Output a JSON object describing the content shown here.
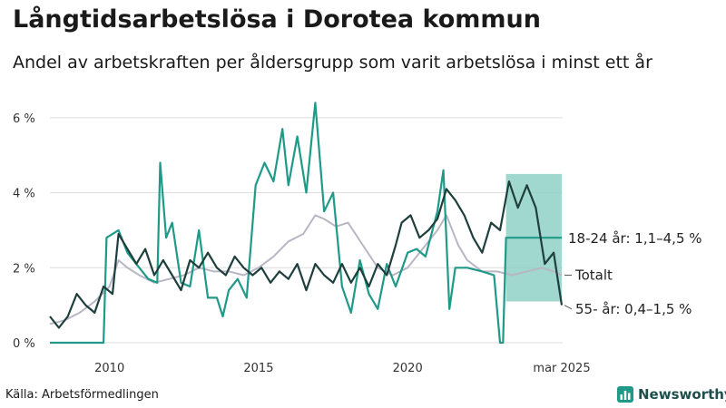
{
  "header": {
    "title": "Långtidsarbetslösa i Dorotea kommun",
    "subtitle": "Andel av arbetskraften per åldersgrupp som varit arbetslösa i minst ett år"
  },
  "footer": {
    "source": "Källa: Arbetsförmedlingen",
    "brand": "Newsworthy"
  },
  "colors": {
    "youth": "#1f9a88",
    "senior": "#1f3f3d",
    "total": "#b9b6c4",
    "band": "#8fd0c6",
    "grid": "#dddddd"
  },
  "chart_data": {
    "type": "line",
    "xlabel": "",
    "ylabel": "",
    "xlim": [
      2008.0,
      2025.2
    ],
    "ylim": [
      0,
      6.6
    ],
    "x_ticks": [
      {
        "value": 2010,
        "label": "2010"
      },
      {
        "value": 2015,
        "label": "2015"
      },
      {
        "value": 2020,
        "label": "2020"
      },
      {
        "value": 2025.17,
        "label": "mar 2025"
      }
    ],
    "y_ticks": [
      {
        "value": 0,
        "label": "0 %"
      },
      {
        "value": 2,
        "label": "2 %"
      },
      {
        "value": 4,
        "label": "4 %"
      },
      {
        "value": 6,
        "label": "6 %"
      }
    ],
    "grid": true,
    "series": [
      {
        "name": "Totalt",
        "key": "total",
        "label": "Totalt",
        "points": [
          [
            2008.0,
            0.5
          ],
          [
            2008.5,
            0.6
          ],
          [
            2009.0,
            0.8
          ],
          [
            2009.5,
            1.1
          ],
          [
            2010.0,
            1.5
          ],
          [
            2010.3,
            2.2
          ],
          [
            2010.6,
            2.0
          ],
          [
            2011.0,
            1.8
          ],
          [
            2011.5,
            1.6
          ],
          [
            2012.0,
            1.7
          ],
          [
            2012.5,
            1.8
          ],
          [
            2013.0,
            2.0
          ],
          [
            2013.5,
            1.9
          ],
          [
            2014.0,
            1.9
          ],
          [
            2014.5,
            1.8
          ],
          [
            2015.0,
            2.0
          ],
          [
            2015.5,
            2.3
          ],
          [
            2016.0,
            2.7
          ],
          [
            2016.5,
            2.9
          ],
          [
            2016.9,
            3.4
          ],
          [
            2017.2,
            3.3
          ],
          [
            2017.6,
            3.1
          ],
          [
            2018.0,
            3.2
          ],
          [
            2018.5,
            2.6
          ],
          [
            2019.0,
            2.0
          ],
          [
            2019.5,
            1.8
          ],
          [
            2020.0,
            2.0
          ],
          [
            2020.5,
            2.5
          ],
          [
            2021.0,
            3.0
          ],
          [
            2021.3,
            3.4
          ],
          [
            2021.7,
            2.6
          ],
          [
            2022.0,
            2.2
          ],
          [
            2022.5,
            1.9
          ],
          [
            2023.0,
            1.9
          ],
          [
            2023.5,
            1.8
          ],
          [
            2024.0,
            1.9
          ],
          [
            2024.5,
            2.0
          ],
          [
            2024.9,
            1.9
          ],
          [
            2025.17,
            1.8
          ]
        ]
      },
      {
        "name": "18-24 år",
        "key": "youth",
        "label": "18-24 år: 1,1–4,5 %",
        "points": [
          [
            2008.0,
            0.0
          ],
          [
            2009.8,
            0.0
          ],
          [
            2009.9,
            2.8
          ],
          [
            2010.3,
            3.0
          ],
          [
            2010.6,
            2.4
          ],
          [
            2011.0,
            2.0
          ],
          [
            2011.3,
            1.7
          ],
          [
            2011.6,
            1.6
          ],
          [
            2011.7,
            4.8
          ],
          [
            2011.9,
            2.8
          ],
          [
            2012.1,
            3.2
          ],
          [
            2012.4,
            1.6
          ],
          [
            2012.7,
            1.5
          ],
          [
            2013.0,
            3.0
          ],
          [
            2013.3,
            1.2
          ],
          [
            2013.6,
            1.2
          ],
          [
            2013.8,
            0.7
          ],
          [
            2014.0,
            1.4
          ],
          [
            2014.3,
            1.7
          ],
          [
            2014.6,
            1.2
          ],
          [
            2014.9,
            4.2
          ],
          [
            2015.2,
            4.8
          ],
          [
            2015.5,
            4.3
          ],
          [
            2015.8,
            5.7
          ],
          [
            2016.0,
            4.2
          ],
          [
            2016.3,
            5.5
          ],
          [
            2016.6,
            4.0
          ],
          [
            2016.9,
            6.4
          ],
          [
            2017.2,
            3.5
          ],
          [
            2017.5,
            4.0
          ],
          [
            2017.8,
            1.5
          ],
          [
            2018.1,
            0.8
          ],
          [
            2018.4,
            2.2
          ],
          [
            2018.7,
            1.3
          ],
          [
            2019.0,
            0.9
          ],
          [
            2019.3,
            2.1
          ],
          [
            2019.6,
            1.5
          ],
          [
            2020.0,
            2.4
          ],
          [
            2020.3,
            2.5
          ],
          [
            2020.6,
            2.3
          ],
          [
            2021.0,
            3.5
          ],
          [
            2021.2,
            4.6
          ],
          [
            2021.4,
            0.9
          ],
          [
            2021.6,
            2.0
          ],
          [
            2022.0,
            2.0
          ],
          [
            2022.5,
            1.9
          ],
          [
            2022.9,
            1.8
          ],
          [
            2023.1,
            0.0
          ],
          [
            2023.2,
            0.0
          ],
          [
            2023.3,
            2.8
          ],
          [
            2024.0,
            2.8
          ],
          [
            2024.5,
            2.8
          ],
          [
            2025.17,
            2.8
          ]
        ]
      },
      {
        "name": "55- år",
        "key": "senior",
        "label": "55- år: 0,4–1,5 %",
        "points": [
          [
            2008.0,
            0.7
          ],
          [
            2008.3,
            0.4
          ],
          [
            2008.6,
            0.7
          ],
          [
            2008.9,
            1.3
          ],
          [
            2009.2,
            1.0
          ],
          [
            2009.5,
            0.8
          ],
          [
            2009.8,
            1.5
          ],
          [
            2010.1,
            1.3
          ],
          [
            2010.3,
            2.9
          ],
          [
            2010.6,
            2.5
          ],
          [
            2010.9,
            2.1
          ],
          [
            2011.2,
            2.5
          ],
          [
            2011.5,
            1.8
          ],
          [
            2011.8,
            2.2
          ],
          [
            2012.1,
            1.8
          ],
          [
            2012.4,
            1.4
          ],
          [
            2012.7,
            2.2
          ],
          [
            2013.0,
            2.0
          ],
          [
            2013.3,
            2.4
          ],
          [
            2013.6,
            2.0
          ],
          [
            2013.9,
            1.8
          ],
          [
            2014.2,
            2.3
          ],
          [
            2014.5,
            2.0
          ],
          [
            2014.8,
            1.8
          ],
          [
            2015.1,
            2.0
          ],
          [
            2015.4,
            1.6
          ],
          [
            2015.7,
            1.9
          ],
          [
            2016.0,
            1.7
          ],
          [
            2016.3,
            2.1
          ],
          [
            2016.6,
            1.4
          ],
          [
            2016.9,
            2.1
          ],
          [
            2017.2,
            1.8
          ],
          [
            2017.5,
            1.6
          ],
          [
            2017.8,
            2.1
          ],
          [
            2018.1,
            1.6
          ],
          [
            2018.4,
            2.0
          ],
          [
            2018.7,
            1.5
          ],
          [
            2019.0,
            2.1
          ],
          [
            2019.3,
            1.8
          ],
          [
            2019.6,
            2.6
          ],
          [
            2019.8,
            3.2
          ],
          [
            2020.1,
            3.4
          ],
          [
            2020.4,
            2.8
          ],
          [
            2020.7,
            3.0
          ],
          [
            2021.0,
            3.3
          ],
          [
            2021.3,
            4.1
          ],
          [
            2021.6,
            3.8
          ],
          [
            2021.9,
            3.4
          ],
          [
            2022.2,
            2.8
          ],
          [
            2022.5,
            2.4
          ],
          [
            2022.8,
            3.2
          ],
          [
            2023.1,
            3.0
          ],
          [
            2023.4,
            4.3
          ],
          [
            2023.7,
            3.6
          ],
          [
            2024.0,
            4.2
          ],
          [
            2024.3,
            3.6
          ],
          [
            2024.6,
            2.1
          ],
          [
            2024.9,
            2.4
          ],
          [
            2025.17,
            1.0
          ]
        ]
      }
    ],
    "band": {
      "series": "18-24 år",
      "x_start": 2023.3,
      "x_end": 2025.17,
      "y_low": 1.1,
      "y_high": 4.5
    }
  }
}
